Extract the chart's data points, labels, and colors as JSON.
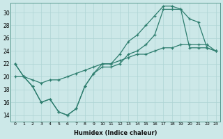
{
  "xlabel": "Humidex (Indice chaleur)",
  "bg_color": "#cce8e8",
  "line_color": "#2d7d6e",
  "grid_color": "#aed4d4",
  "xlim": [
    -0.5,
    23.5
  ],
  "ylim": [
    13,
    31.5
  ],
  "yticks": [
    14,
    16,
    18,
    20,
    22,
    24,
    26,
    28,
    30
  ],
  "xticks": [
    0,
    1,
    2,
    3,
    4,
    5,
    6,
    7,
    8,
    9,
    10,
    11,
    12,
    13,
    14,
    15,
    16,
    17,
    18,
    19,
    20,
    21,
    22,
    23
  ],
  "line1_x": [
    0,
    1,
    2,
    3,
    4,
    5,
    6,
    7,
    8,
    9,
    10,
    11,
    12,
    13,
    14,
    15,
    16,
    17,
    18,
    19,
    20,
    21,
    22,
    23
  ],
  "line1_y": [
    22,
    20,
    18.5,
    16,
    16.5,
    14.5,
    14,
    15,
    18.5,
    20.5,
    21.5,
    21.5,
    22,
    23.5,
    24,
    25,
    26.5,
    30.5,
    30.5,
    30.5,
    29,
    28.5,
    24.5,
    24
  ],
  "line2_x": [
    0,
    1,
    2,
    3,
    4,
    5,
    6,
    7,
    8,
    9,
    10,
    11,
    12,
    13,
    14,
    15,
    16,
    17,
    18,
    19,
    20,
    21,
    22,
    23
  ],
  "line2_y": [
    22,
    20,
    18.5,
    16,
    16.5,
    14.5,
    14,
    15,
    18.5,
    20.5,
    22,
    22,
    23.5,
    25.5,
    26.5,
    28,
    29.5,
    31,
    31,
    30.5,
    24.5,
    24.5,
    24.5,
    24
  ],
  "line3_x": [
    0,
    1,
    2,
    3,
    4,
    5,
    6,
    7,
    8,
    9,
    10,
    11,
    12,
    13,
    14,
    15,
    16,
    17,
    18,
    19,
    20,
    21,
    22,
    23
  ],
  "line3_y": [
    20,
    20,
    19.5,
    19,
    19.5,
    19.5,
    20,
    20.5,
    21,
    21.5,
    22,
    22,
    22.5,
    23,
    23.5,
    23.5,
    24,
    24.5,
    24.5,
    25,
    25,
    25,
    25,
    24
  ]
}
